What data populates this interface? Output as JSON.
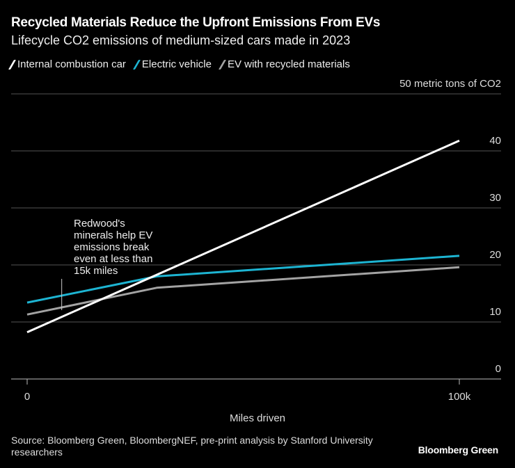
{
  "title": "Recycled Materials Reduce the Upfront Emissions From EVs",
  "subtitle": "Lifecycle CO2 emissions of medium-sized cars made in 2023",
  "source": "Source: Bloomberg Green, BloombergNEF, pre-print analysis by Stanford University researchers",
  "logo": "Bloomberg Green",
  "chart_data": {
    "type": "line",
    "xlabel": "Miles driven",
    "ylabel": "",
    "xlim": [
      0,
      100000
    ],
    "ylim": [
      0,
      50
    ],
    "x_ticks": [
      {
        "value": 0,
        "label": "0"
      },
      {
        "value": 100000,
        "label": "100k"
      }
    ],
    "y_ticks": [
      {
        "value": 0,
        "label": "0"
      },
      {
        "value": 10,
        "label": "10"
      },
      {
        "value": 20,
        "label": "20"
      },
      {
        "value": 30,
        "label": "30"
      },
      {
        "value": 40,
        "label": "40"
      },
      {
        "value": 50,
        "label": "50 metric tons of CO2"
      }
    ],
    "grid": true,
    "legend_position": "top-left",
    "series": [
      {
        "name": "Internal combustion car",
        "color": "#ffffff",
        "x": [
          0,
          100000
        ],
        "y": [
          8.2,
          41.8
        ]
      },
      {
        "name": "Electric vehicle",
        "color": "#1db4d2",
        "x": [
          0,
          30000,
          100000
        ],
        "y": [
          13.4,
          18.0,
          21.6
        ]
      },
      {
        "name": "EV with recycled materials",
        "color": "#a3a3a3",
        "x": [
          0,
          30000,
          100000
        ],
        "y": [
          11.3,
          16.0,
          19.6
        ]
      }
    ],
    "annotations": [
      {
        "text": "Redwood's minerals help EV emissions break even at less than 15k miles",
        "lines": [
          "Redwood's",
          "minerals help EV",
          "emissions break",
          "even at less than",
          "15k miles"
        ],
        "x": 8000
      }
    ]
  }
}
